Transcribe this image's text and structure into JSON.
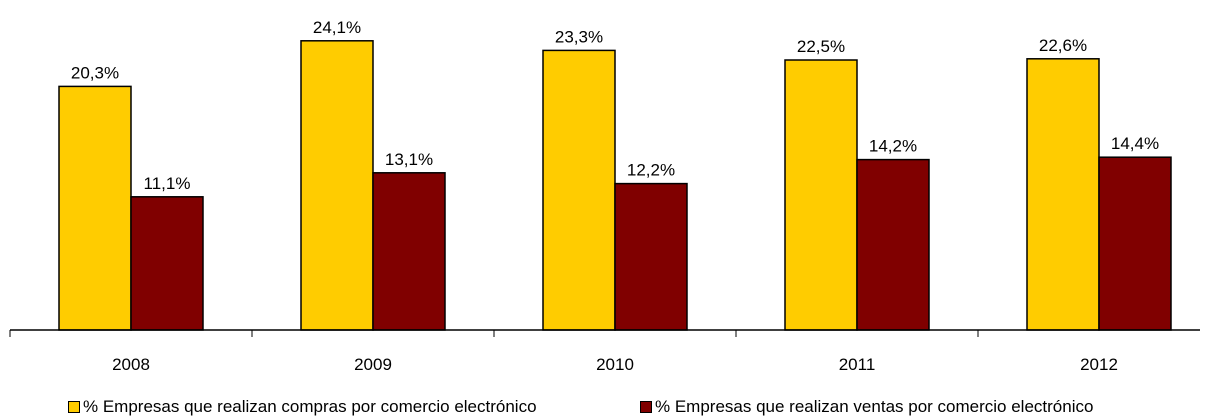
{
  "chart_data": {
    "type": "bar",
    "categories": [
      "2008",
      "2009",
      "2010",
      "2011",
      "2012"
    ],
    "series": [
      {
        "name": "% Empresas que realizan compras por comercio electrónico",
        "values": [
          20.3,
          24.1,
          23.3,
          22.5,
          22.6
        ],
        "labels": [
          "20,3%",
          "24,1%",
          "23,3%",
          "22,5%",
          "22,6%"
        ],
        "color": "#ffcc00"
      },
      {
        "name": "% Empresas que realizan ventas por comercio electrónico",
        "values": [
          11.1,
          13.1,
          12.2,
          14.2,
          14.4
        ],
        "labels": [
          "11,1%",
          "13,1%",
          "12,2%",
          "14,2%",
          "14,4%"
        ],
        "color": "#800000"
      }
    ],
    "ylim": [
      0,
      27.5
    ],
    "grid": false,
    "legend_position": "bottom"
  }
}
